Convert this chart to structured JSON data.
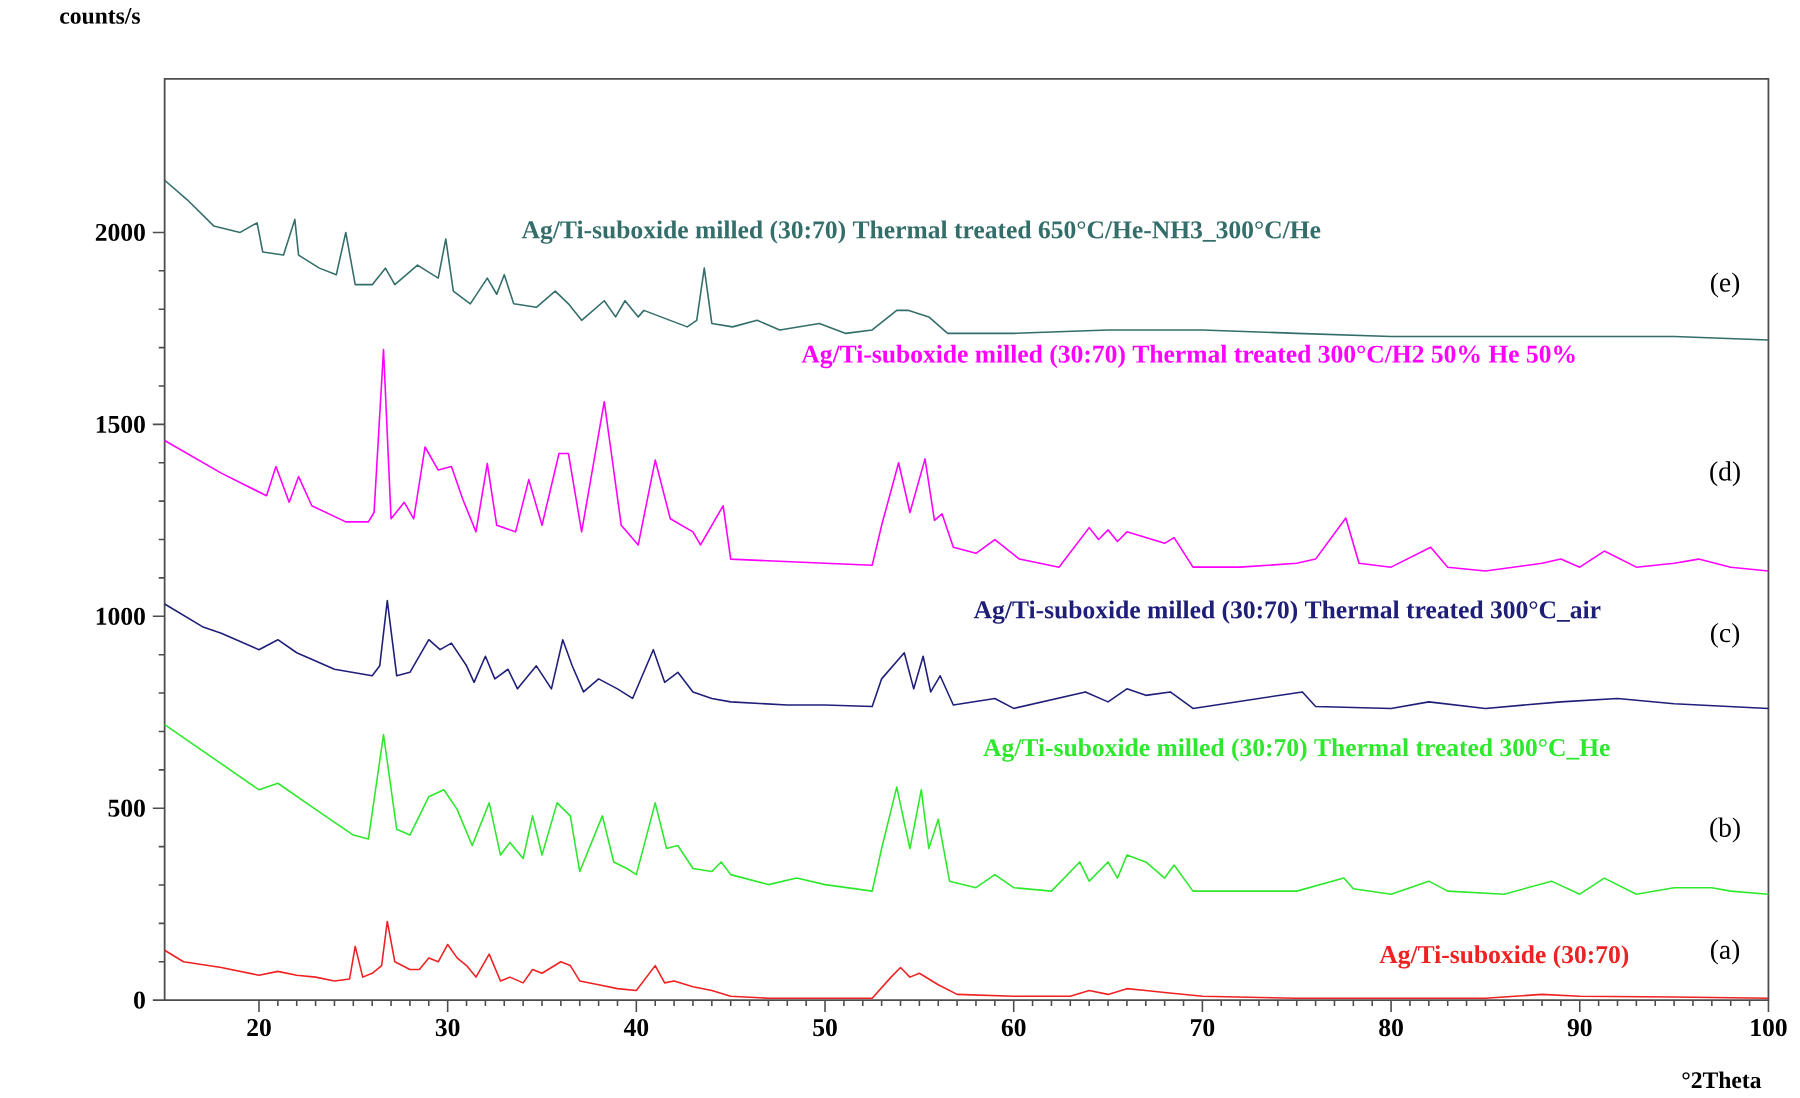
{
  "chart_data": {
    "type": "line",
    "xlabel": "°2Theta",
    "ylabel": "counts/s",
    "xlim": [
      15,
      100
    ],
    "ylim": [
      0,
      2400
    ],
    "xticks": [
      20,
      30,
      40,
      50,
      60,
      70,
      80,
      90,
      100
    ],
    "yticks": [
      0,
      500,
      1000,
      1500,
      2000
    ],
    "grid": false,
    "marker": "none",
    "line_style": "solid",
    "annotations": [
      "(a)",
      "(b)",
      "(c)",
      "(d)",
      "(e)"
    ],
    "series": [
      {
        "name": "Ag/Ti-suboxide (30:70)",
        "color": "#ee2222",
        "x": [
          15,
          16,
          18,
          20,
          21,
          22,
          23,
          24,
          24.8,
          25.1,
          25.5,
          26,
          26.5,
          26.8,
          27.2,
          28,
          28.5,
          29,
          29.5,
          30,
          30.5,
          31,
          31.5,
          32.2,
          32.8,
          33.3,
          34,
          34.5,
          35,
          36,
          36.5,
          37,
          38,
          39,
          40,
          41,
          41.5,
          42,
          43,
          44,
          45,
          47,
          50,
          52.5,
          53.5,
          54,
          54.5,
          55,
          55.5,
          56,
          57,
          60,
          63,
          64,
          65,
          66,
          67,
          68,
          70,
          75,
          80,
          85,
          88,
          90,
          95,
          100
        ],
        "values": [
          130,
          100,
          85,
          65,
          75,
          65,
          60,
          50,
          55,
          140,
          60,
          70,
          90,
          205,
          100,
          80,
          80,
          110,
          100,
          145,
          110,
          90,
          60,
          120,
          50,
          60,
          45,
          80,
          70,
          100,
          90,
          50,
          40,
          30,
          25,
          90,
          45,
          50,
          35,
          25,
          10,
          5,
          5,
          5,
          60,
          85,
          60,
          70,
          55,
          40,
          15,
          10,
          10,
          25,
          15,
          30,
          25,
          20,
          10,
          5,
          5,
          5,
          15,
          10,
          8,
          5
        ]
      },
      {
        "name": "Ag/Ti-suboxide milled (30:70) Thermal treated 300°C_He",
        "color": "#2ee82e",
        "x": [
          15,
          20,
          21,
          23,
          25,
          25.8,
          26.6,
          27.3,
          28,
          29,
          29.8,
          30.5,
          31.3,
          32.2,
          32.8,
          33.3,
          34,
          34.5,
          35,
          35.8,
          36.5,
          37,
          38.2,
          38.8,
          39.5,
          40,
          41,
          41.6,
          42.2,
          43,
          44,
          44.5,
          45,
          47,
          48.5,
          50,
          52.5,
          53,
          53.8,
          54.5,
          55.1,
          55.5,
          56,
          56.6,
          58,
          59,
          60,
          62,
          63.5,
          64,
          65,
          65.5,
          66,
          67,
          68,
          68.5,
          69.5,
          72,
          75,
          77.5,
          78,
          80,
          82,
          83,
          86,
          88.5,
          90,
          91.3,
          93,
          95,
          97,
          98,
          100
        ],
        "values": [
          718,
          548,
          565,
          497,
          430,
          420,
          692,
          445,
          430,
          530,
          548,
          497,
          403,
          514,
          378,
          411,
          369,
          480,
          378,
          514,
          480,
          335,
          480,
          360,
          343,
          327,
          514,
          395,
          403,
          343,
          335,
          360,
          327,
          301,
          318,
          301,
          284,
          395,
          555,
          395,
          548,
          395,
          471,
          310,
          293,
          327,
          293,
          284,
          360,
          310,
          360,
          318,
          378,
          360,
          318,
          352,
          284,
          284,
          284,
          318,
          290,
          276,
          310,
          284,
          276,
          310,
          276,
          318,
          276,
          293,
          293,
          284,
          276
        ]
      },
      {
        "name": "Ag/Ti-suboxide milled (30:70) Thermal treated 300°C_air",
        "color": "#1f1f7a",
        "x": [
          15,
          17,
          18,
          20,
          21,
          22,
          24,
          26,
          26.4,
          26.8,
          27.3,
          28,
          29,
          29.6,
          30.2,
          31,
          31.4,
          32,
          32.5,
          33.2,
          33.7,
          34.7,
          35.5,
          36.1,
          36.6,
          37.2,
          38,
          39,
          39.8,
          40.9,
          41.5,
          42.2,
          43,
          44,
          45,
          48,
          50,
          52.5,
          53,
          54.2,
          54.7,
          55.2,
          55.6,
          56.1,
          56.8,
          59,
          60,
          63.8,
          65,
          66,
          67,
          68.3,
          69.5,
          75.3,
          76,
          80,
          82,
          85,
          89,
          92,
          95,
          100
        ],
        "values": [
          1032,
          973,
          956,
          913,
          939,
          905,
          862,
          845,
          871,
          1041,
          845,
          854,
          939,
          913,
          930,
          871,
          828,
          896,
          837,
          862,
          811,
          871,
          811,
          939,
          871,
          803,
          837,
          811,
          786,
          913,
          828,
          854,
          803,
          786,
          777,
          769,
          769,
          765,
          837,
          905,
          811,
          896,
          803,
          845,
          769,
          786,
          760,
          803,
          777,
          811,
          794,
          803,
          760,
          803,
          765,
          760,
          777,
          760,
          777,
          786,
          772,
          760
        ]
      },
      {
        "name": "Ag/Ti-suboxide milled (30:70) Thermal treated 300°C/H2 50% He 50%",
        "color": "#ff00ff",
        "x": [
          15,
          18,
          20.4,
          20.9,
          21.6,
          22.1,
          22.8,
          24.6,
          25.8,
          26.1,
          26.6,
          27,
          27.7,
          28.2,
          28.8,
          29.5,
          30.2,
          30.8,
          31.5,
          32.1,
          32.6,
          33.6,
          34.3,
          35,
          35.9,
          36.4,
          37.1,
          38.3,
          39.2,
          40.1,
          41,
          41.8,
          43,
          43.4,
          44.6,
          45,
          50,
          52.5,
          53,
          53.9,
          54.5,
          55.3,
          55.8,
          56.2,
          56.8,
          58,
          59,
          60.3,
          62.4,
          64,
          64.5,
          65,
          65.5,
          66,
          67,
          68,
          68.5,
          69.5,
          72,
          75,
          76,
          77.6,
          78.3,
          80,
          82.1,
          83,
          85,
          88,
          89,
          90,
          91.3,
          93,
          95,
          96.3,
          98,
          100
        ],
        "values": [
          1458,
          1373,
          1314,
          1390,
          1297,
          1364,
          1288,
          1246,
          1246,
          1271,
          1695,
          1254,
          1297,
          1254,
          1441,
          1381,
          1390,
          1305,
          1220,
          1398,
          1237,
          1220,
          1356,
          1237,
          1424,
          1424,
          1220,
          1559,
          1237,
          1186,
          1407,
          1254,
          1220,
          1186,
          1288,
          1149,
          1138,
          1133,
          1237,
          1400,
          1270,
          1410,
          1250,
          1267,
          1180,
          1164,
          1200,
          1149,
          1128,
          1231,
          1200,
          1225,
          1195,
          1220,
          1205,
          1190,
          1205,
          1128,
          1128,
          1138,
          1149,
          1256,
          1138,
          1128,
          1180,
          1128,
          1118,
          1138,
          1149,
          1128,
          1170,
          1128,
          1138,
          1149,
          1128,
          1118
        ]
      },
      {
        "name": "Ag/Ti-suboxide milled (30:70) Thermal treated 650°C/He-NH3_300°C/He",
        "color": "#336e6a",
        "x": [
          15,
          16.2,
          17.6,
          19,
          19.9,
          20.2,
          21.3,
          21.9,
          22.1,
          23.2,
          24.1,
          24.6,
          25.1,
          26,
          26.7,
          27.2,
          28.4,
          29.5,
          29.9,
          30.3,
          31.2,
          32.1,
          32.6,
          33,
          33.5,
          34.7,
          35.7,
          36.4,
          37.1,
          38.3,
          38.9,
          39.4,
          40.1,
          40.4,
          41.3,
          42.7,
          43.2,
          43.6,
          44,
          45.1,
          46.4,
          47.6,
          49.7,
          51.1,
          52.5,
          53.8,
          54.4,
          55.5,
          56.5,
          60,
          65,
          70,
          75,
          80,
          85,
          90,
          95,
          100
        ],
        "values": [
          2136,
          2085,
          2017,
          2000,
          2025,
          1949,
          1941,
          2034,
          1941,
          1907,
          1890,
          2000,
          1864,
          1864,
          1907,
          1864,
          1915,
          1881,
          1983,
          1847,
          1814,
          1881,
          1839,
          1890,
          1814,
          1805,
          1847,
          1814,
          1771,
          1822,
          1780,
          1822,
          1780,
          1797,
          1780,
          1754,
          1771,
          1907,
          1763,
          1754,
          1771,
          1746,
          1763,
          1737,
          1746,
          1797,
          1797,
          1780,
          1737,
          1737,
          1746,
          1746,
          1737,
          1729,
          1729,
          1729,
          1729,
          1720
        ]
      }
    ]
  }
}
